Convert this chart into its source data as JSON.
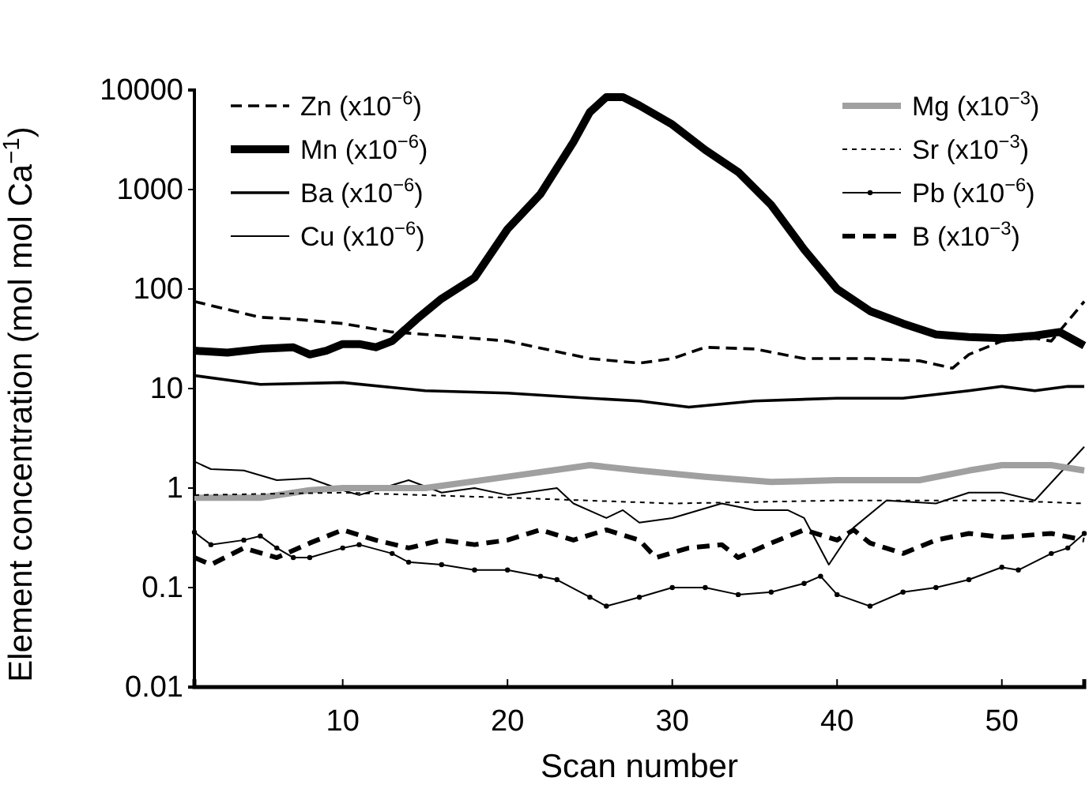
{
  "chart_data": {
    "type": "line",
    "xlabel": "Scan number",
    "ylabel": "Element concentration (mol mol Ca$^{−1}$)",
    "log": "y",
    "xlim": [
      1,
      55
    ],
    "ylim": [
      0.01,
      10000
    ],
    "xticks": [
      10,
      20,
      30,
      40,
      50
    ],
    "yticks": [
      0.01,
      0.1,
      1,
      10,
      100,
      1000,
      10000
    ],
    "grid": false,
    "legend": "top",
    "marker": "none",
    "series": [
      {
        "name": "Zn (x10$^{−6}$)",
        "color": "#000000",
        "line_style": "dashed",
        "x": [
          1,
          5,
          7,
          10,
          13,
          15,
          20,
          25,
          28,
          30,
          32,
          35,
          38,
          42,
          45,
          47,
          48,
          50,
          52,
          53,
          55
        ],
        "values": [
          75,
          52,
          50,
          45,
          37,
          35,
          30,
          20,
          18,
          20,
          26,
          25,
          20,
          20,
          19,
          16,
          22,
          30,
          32,
          30,
          75
        ]
      },
      {
        "name": "Mn (x10$^{−6}$)",
        "color": "#000000",
        "line_style": "solid",
        "x": [
          1,
          3,
          5,
          7,
          8,
          9,
          10,
          11,
          12,
          13,
          14.5,
          16,
          18,
          20,
          22,
          24,
          25,
          26,
          27,
          28,
          30,
          32,
          34,
          36,
          38,
          40,
          42,
          44,
          46,
          48,
          50,
          52,
          53.5,
          55
        ],
        "values": [
          24,
          23,
          25,
          26,
          22,
          24,
          28,
          28,
          26,
          30,
          50,
          80,
          130,
          400,
          900,
          3000,
          6000,
          8500,
          8500,
          7000,
          4500,
          2500,
          1500,
          700,
          250,
          100,
          60,
          45,
          35,
          33,
          32,
          34,
          37,
          27
        ]
      },
      {
        "name": "Ba (x10$^{−6}$)",
        "color": "#000000",
        "line_style": "solid",
        "x": [
          1,
          5,
          10,
          15,
          20,
          25,
          28,
          31,
          35,
          40,
          44,
          48,
          50,
          52,
          54,
          55
        ],
        "values": [
          13.5,
          11,
          11.5,
          9.5,
          9,
          8,
          7.5,
          6.5,
          7.5,
          8,
          8,
          9.5,
          10.5,
          9.5,
          10.5,
          10.5
        ]
      },
      {
        "name": "Cu (x10$^{−6}$)",
        "color": "#000000",
        "line_style": "solid",
        "x": [
          1,
          2,
          4,
          6,
          8,
          10,
          11,
          14,
          16,
          18,
          20,
          23,
          24,
          26,
          27,
          28,
          30,
          33,
          35,
          37,
          38,
          39.5,
          41,
          43,
          46,
          48,
          50,
          52,
          55
        ],
        "values": [
          1.85,
          1.55,
          1.5,
          1.2,
          1.25,
          0.95,
          0.85,
          1.2,
          0.9,
          1.0,
          0.85,
          1.0,
          0.7,
          0.5,
          0.6,
          0.45,
          0.5,
          0.7,
          0.6,
          0.6,
          0.5,
          0.17,
          0.4,
          0.75,
          0.7,
          0.9,
          0.9,
          0.75,
          2.6
        ]
      },
      {
        "name": "Mg (x10$^{−3}$)",
        "color": "#a0a0a0",
        "line_style": "solid",
        "x": [
          1,
          5,
          8,
          10,
          15,
          20,
          25,
          28,
          32,
          36,
          40,
          45,
          48,
          50,
          53,
          55
        ],
        "values": [
          0.8,
          0.8,
          0.95,
          1.0,
          1.0,
          1.3,
          1.7,
          1.5,
          1.3,
          1.15,
          1.2,
          1.2,
          1.5,
          1.7,
          1.7,
          1.5
        ]
      },
      {
        "name": "Sr (x10$^{−3}$)",
        "color": "#000000",
        "line_style": "dotted",
        "x": [
          1,
          10,
          20,
          30,
          40,
          50,
          55
        ],
        "values": [
          0.85,
          0.9,
          0.8,
          0.7,
          0.75,
          0.75,
          0.7
        ]
      },
      {
        "name": "Pb (x10$^{−6}$)",
        "color": "#000000",
        "line_style": "solid",
        "marker": "circle",
        "x": [
          1,
          2,
          4,
          5,
          6,
          7,
          8,
          10,
          11,
          13,
          14,
          16,
          18,
          20,
          22,
          23,
          25,
          26,
          28,
          30,
          32,
          34,
          36,
          38,
          39,
          40,
          42,
          44,
          46,
          48,
          50,
          51,
          53,
          54,
          55
        ],
        "values": [
          0.36,
          0.27,
          0.3,
          0.33,
          0.25,
          0.2,
          0.2,
          0.25,
          0.27,
          0.22,
          0.18,
          0.17,
          0.15,
          0.15,
          0.13,
          0.12,
          0.08,
          0.065,
          0.08,
          0.1,
          0.1,
          0.085,
          0.09,
          0.11,
          0.13,
          0.085,
          0.065,
          0.09,
          0.1,
          0.12,
          0.16,
          0.15,
          0.22,
          0.25,
          0.35
        ]
      },
      {
        "name": "B (x10$^{−3}$)",
        "color": "#000000",
        "line_style": "dashed",
        "x": [
          1,
          2,
          4,
          6,
          8,
          10,
          12,
          14,
          16,
          18,
          20,
          22,
          24,
          26,
          28,
          29,
          31,
          33,
          34,
          36,
          38,
          40,
          41,
          42,
          44,
          46,
          48,
          50,
          53,
          55
        ],
        "values": [
          0.2,
          0.17,
          0.25,
          0.2,
          0.28,
          0.38,
          0.3,
          0.25,
          0.3,
          0.27,
          0.3,
          0.38,
          0.3,
          0.38,
          0.3,
          0.2,
          0.25,
          0.27,
          0.2,
          0.28,
          0.38,
          0.3,
          0.38,
          0.28,
          0.22,
          0.3,
          0.35,
          0.32,
          0.35,
          0.3
        ]
      }
    ]
  }
}
